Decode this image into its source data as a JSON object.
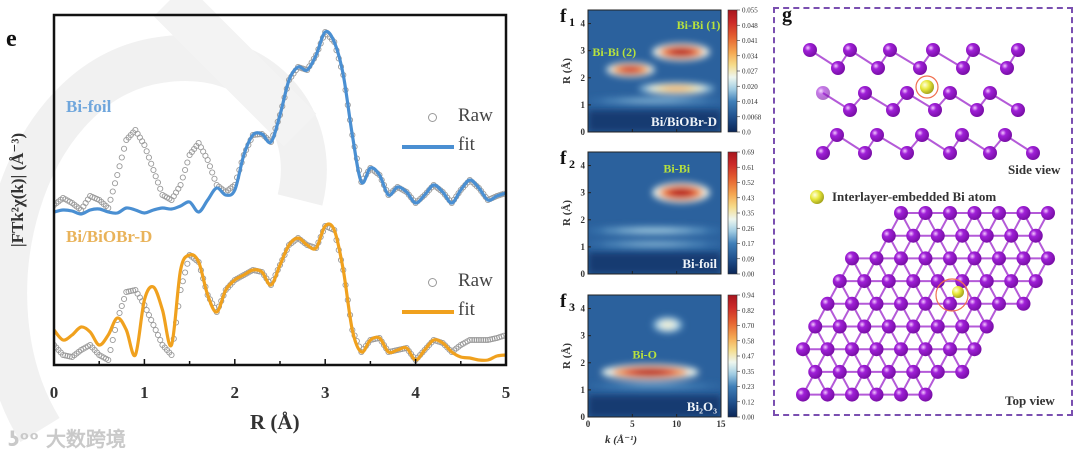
{
  "watermark": {
    "logo_text": "大数跨境"
  },
  "panel_e": {
    "letter": "e",
    "ylabel": "|FTk²χ(k)| (Å⁻³)",
    "xlabel": "R (Å)",
    "sample_labels": {
      "top": "Bi-foil",
      "bottom": "Bi/BiOBr-D"
    },
    "legend": {
      "raw": "Raw",
      "fit": "fit"
    }
  },
  "panel_f": {
    "xlabel": "k (Å⁻¹)",
    "ylabel": "R (Å)",
    "x_ticks": [
      "0",
      "5",
      "10",
      "15"
    ],
    "y_ticks": [
      "0",
      "1",
      "2",
      "3",
      "4"
    ]
  },
  "panel_g": {
    "letter": "g",
    "side_view": "Side view",
    "top_view": "Top view",
    "legend": "Interlayer-embedded Bi atom",
    "colors": {
      "bi": "#a020d8",
      "embedded": "#e8e83a",
      "ring": "#f07050",
      "frame": "#7a4fb0"
    }
  },
  "chart_data": [
    {
      "id": "e",
      "type": "line",
      "title": "",
      "xlabel": "R (Å)",
      "ylabel": "|FTk²χ(k)| (Å⁻³)",
      "xlim": [
        0,
        5
      ],
      "ylim": [
        0,
        350
      ],
      "x_ticks": [
        0,
        1,
        2,
        3,
        4,
        5
      ],
      "x": [
        0,
        0.1,
        0.2,
        0.3,
        0.4,
        0.5,
        0.6,
        0.7,
        0.8,
        0.9,
        1.0,
        1.1,
        1.2,
        1.3,
        1.4,
        1.5,
        1.6,
        1.7,
        1.8,
        1.9,
        2.0,
        2.1,
        2.2,
        2.3,
        2.4,
        2.5,
        2.6,
        2.7,
        2.8,
        2.9,
        3.0,
        3.1,
        3.2,
        3.3,
        3.4,
        3.5,
        3.6,
        3.7,
        3.8,
        3.9,
        4.0,
        4.1,
        4.2,
        4.3,
        4.4,
        4.5,
        4.6,
        4.7,
        4.8,
        4.9,
        5.0
      ],
      "series": [
        {
          "name": "Bi-foil Raw",
          "style": "circles",
          "color": "#9a9a9a",
          "values": [
            160,
            167,
            162,
            155,
            169,
            165,
            157,
            190,
            225,
            235,
            220,
            195,
            170,
            165,
            180,
            210,
            222,
            205,
            180,
            173,
            180,
            210,
            230,
            231,
            223,
            250,
            285,
            298,
            295,
            310,
            333,
            323,
            290,
            230,
            183,
            197,
            190,
            170,
            178,
            173,
            162,
            170,
            180,
            173,
            162,
            175,
            185,
            177,
            165,
            169,
            172
          ]
        },
        {
          "name": "Bi-foil fit",
          "style": "line",
          "color": "#4a8fd2",
          "values": [
            153,
            155,
            154,
            151,
            155,
            156,
            153,
            152,
            157,
            155,
            152,
            155,
            157,
            156,
            159,
            163,
            153,
            165,
            177,
            170,
            175,
            210,
            230,
            231,
            223,
            250,
            285,
            298,
            295,
            310,
            333,
            323,
            290,
            230,
            183,
            197,
            190,
            170,
            178,
            173,
            162,
            170,
            180,
            173,
            162,
            175,
            185,
            177,
            165,
            169,
            172
          ]
        },
        {
          "name": "Bi/BiOBr-D Raw",
          "style": "circles",
          "color": "#9a9a9a",
          "values": [
            20,
            10,
            8,
            15,
            20,
            10,
            5,
            45,
            73,
            75,
            60,
            40,
            20,
            10,
            75,
            110,
            103,
            70,
            53,
            75,
            85,
            90,
            95,
            93,
            80,
            100,
            120,
            127,
            120,
            117,
            139,
            135,
            95,
            35,
            13,
            25,
            27,
            13,
            15,
            17,
            5,
            15,
            25,
            22,
            13,
            20,
            25,
            25,
            25,
            27,
            30
          ]
        },
        {
          "name": "Bi/BiOBr-D fit",
          "style": "line",
          "color": "#f0a11e",
          "values": [
            35,
            25,
            30,
            38,
            33,
            20,
            30,
            47,
            35,
            10,
            65,
            78,
            55,
            20,
            95,
            110,
            103,
            70,
            53,
            75,
            85,
            90,
            95,
            93,
            80,
            100,
            120,
            127,
            120,
            117,
            139,
            135,
            95,
            35,
            13,
            25,
            27,
            13,
            15,
            17,
            5,
            15,
            25,
            22,
            13,
            8,
            7,
            5,
            5,
            9,
            10
          ]
        }
      ]
    },
    {
      "id": "f1",
      "type": "heatmap",
      "panel_label": "f",
      "panel_index": "1",
      "sample": "Bi/BiOBr-D",
      "xlabel": "k (Å⁻¹)",
      "ylabel": "R (Å)",
      "xlim": [
        0,
        15
      ],
      "ylim": [
        0,
        4.5
      ],
      "colorbar_ticks": [
        "0.055",
        "0.048",
        "0.041",
        "0.034",
        "0.027",
        "0.020",
        "0.014",
        "0.0068",
        "0.0"
      ],
      "features": [
        {
          "k": 10.0,
          "R": 1.6,
          "k_width": 8.5,
          "R_width": 0.45,
          "level": 0.6
        },
        {
          "k": 4.8,
          "R": 2.3,
          "k_width": 5.5,
          "R_width": 0.55,
          "level": 0.92
        },
        {
          "k": 10.5,
          "R": 2.95,
          "k_width": 6.5,
          "R_width": 0.65,
          "level": 1.0
        },
        {
          "k": 7.5,
          "R": 1.15,
          "k_width": 15,
          "R_width": 0.25,
          "level": 0.25
        }
      ],
      "annotations": [
        {
          "text": "Bi-Bi (1)",
          "k": 10.0,
          "R": 3.8
        },
        {
          "text": "Bi-Bi (2)",
          "k": 0.5,
          "R": 2.8
        }
      ]
    },
    {
      "id": "f2",
      "type": "heatmap",
      "panel_label": "f",
      "panel_index": "2",
      "sample": "Bi-foil",
      "xlabel": "k (Å⁻¹)",
      "ylabel": "R (Å)",
      "xlim": [
        0,
        15
      ],
      "ylim": [
        0,
        4.5
      ],
      "colorbar_ticks": [
        "0.69",
        "0.61",
        "0.52",
        "0.43",
        "0.35",
        "0.26",
        "0.17",
        "0.09",
        "0.00"
      ],
      "features": [
        {
          "k": 7.5,
          "R": 1.6,
          "k_width": 15,
          "R_width": 0.3,
          "level": 0.28
        },
        {
          "k": 7.5,
          "R": 1.1,
          "k_width": 15,
          "R_width": 0.25,
          "level": 0.25
        },
        {
          "k": 10.5,
          "R": 3.0,
          "k_width": 6.5,
          "R_width": 0.75,
          "level": 1.0
        }
      ],
      "annotations": [
        {
          "text": "Bi-Bi",
          "k": 8.5,
          "R": 3.75
        }
      ]
    },
    {
      "id": "f3",
      "type": "heatmap",
      "panel_label": "f",
      "panel_index": "3",
      "sample": "Bi₂O₃",
      "xlabel": "k (Å⁻¹)",
      "ylabel": "R (Å)",
      "xlim": [
        0,
        15
      ],
      "ylim": [
        0,
        4.5
      ],
      "colorbar_ticks": [
        "0.94",
        "0.82",
        "0.70",
        "0.58",
        "0.47",
        "0.35",
        "0.23",
        "0.12",
        "0.00"
      ],
      "features": [
        {
          "k": 9.0,
          "R": 3.4,
          "k_width": 3.5,
          "R_width": 0.6,
          "level": 0.42
        },
        {
          "k": 7.5,
          "R": 1.15,
          "k_width": 15,
          "R_width": 0.2,
          "level": 0.22
        },
        {
          "k": 7.0,
          "R": 1.65,
          "k_width": 11,
          "R_width": 0.6,
          "level": 1.0
        }
      ],
      "annotations": [
        {
          "text": "Bi-O",
          "k": 5.0,
          "R": 2.15
        }
      ]
    }
  ]
}
